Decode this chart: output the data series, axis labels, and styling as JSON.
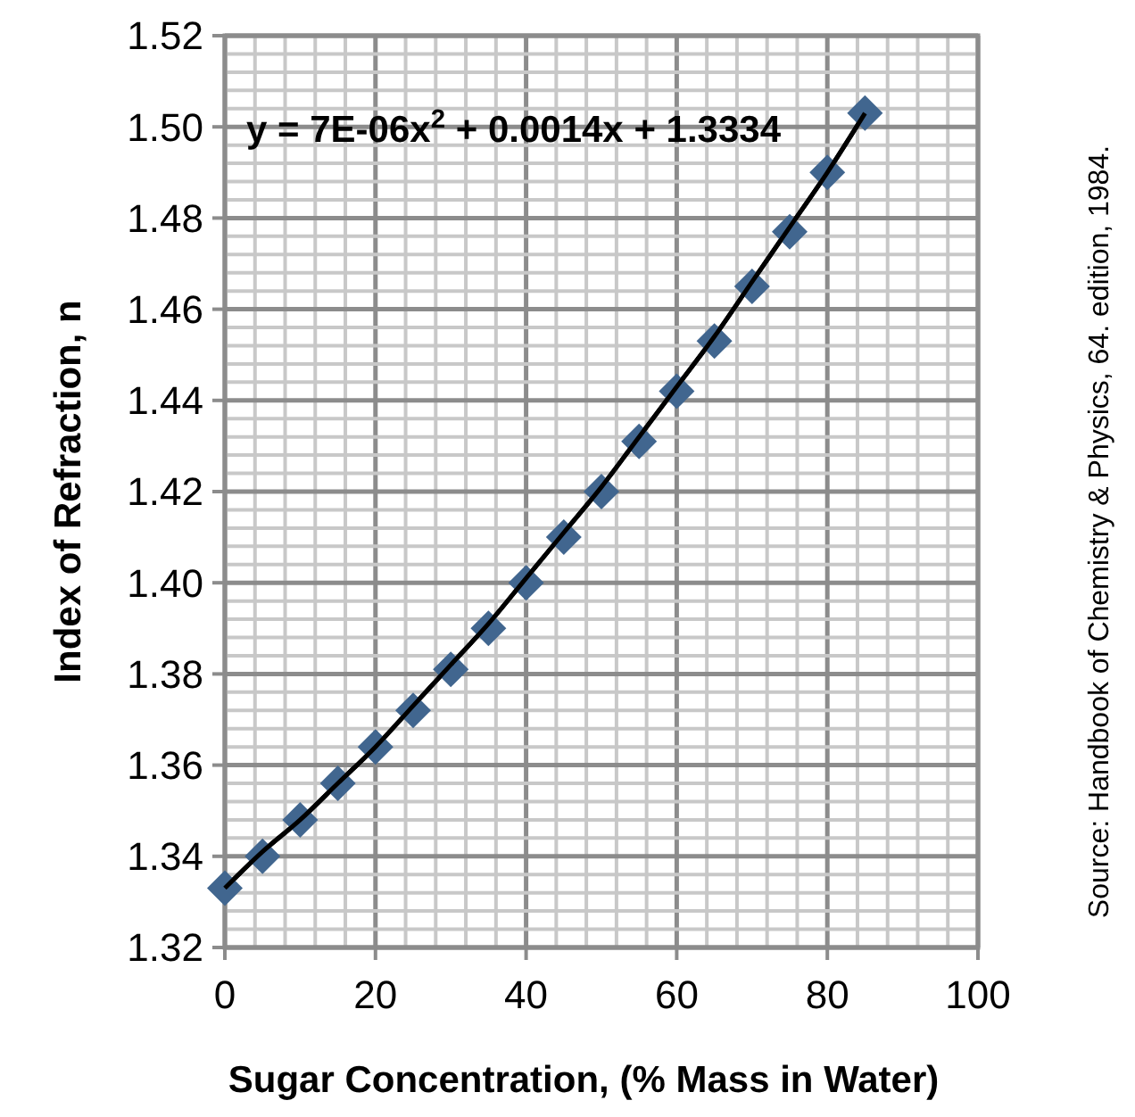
{
  "chart_data": {
    "type": "scatter",
    "xlabel": "Sugar Concentration, (% Mass in Water)",
    "ylabel": "Index of Refraction, n",
    "x": [
      0,
      5,
      10,
      15,
      20,
      25,
      30,
      35,
      40,
      45,
      50,
      55,
      60,
      65,
      70,
      75,
      80,
      85
    ],
    "series": [
      {
        "color": "#41668f",
        "values": [
          1.333,
          1.34,
          1.348,
          1.356,
          1.364,
          1.372,
          1.381,
          1.39,
          1.4,
          1.41,
          1.42,
          1.431,
          1.442,
          1.453,
          1.465,
          1.477,
          1.49,
          1.503
        ]
      },
      {
        "type": "line",
        "color": "#000000",
        "marker": "none",
        "values": [
          1.333,
          1.341,
          1.348,
          1.356,
          1.364,
          1.373,
          1.382,
          1.391,
          1.401,
          1.411,
          1.421,
          1.432,
          1.443,
          1.454,
          1.466,
          1.478,
          1.49,
          1.503
        ]
      }
    ],
    "marker": "diamond",
    "grid": true,
    "xlim": [
      0,
      100
    ],
    "ylim": [
      1.32,
      1.52
    ],
    "xticks": [
      0,
      {
        "value": 4,
        "label": null
      },
      {
        "value": 8,
        "label": null
      },
      {
        "value": 12,
        "label": null
      },
      {
        "value": 16,
        "label": null
      },
      20,
      {
        "value": 24,
        "label": null
      },
      {
        "value": 28,
        "label": null
      },
      {
        "value": 32,
        "label": null
      },
      {
        "value": 36,
        "label": null
      },
      40,
      {
        "value": 44,
        "label": null
      },
      {
        "value": 48,
        "label": null
      },
      {
        "value": 52,
        "label": null
      },
      {
        "value": 56,
        "label": null
      },
      60,
      {
        "value": 64,
        "label": null
      },
      {
        "value": 68,
        "label": null
      },
      {
        "value": 72,
        "label": null
      },
      {
        "value": 76,
        "label": null
      },
      80,
      {
        "value": 84,
        "label": null
      },
      {
        "value": 88,
        "label": null
      },
      {
        "value": 92,
        "label": null
      },
      {
        "value": 96,
        "label": null
      },
      100
    ],
    "yticks": [
      {
        "value": 1.32,
        "label": "1.32"
      },
      {
        "value": 1.324,
        "label": null
      },
      {
        "value": 1.328,
        "label": null
      },
      {
        "value": 1.332,
        "label": null
      },
      {
        "value": 1.336,
        "label": null
      },
      {
        "value": 1.34,
        "label": "1.34"
      },
      {
        "value": 1.344,
        "label": null
      },
      {
        "value": 1.348,
        "label": null
      },
      {
        "value": 1.352,
        "label": null
      },
      {
        "value": 1.356,
        "label": null
      },
      {
        "value": 1.36,
        "label": "1.36"
      },
      {
        "value": 1.364,
        "label": null
      },
      {
        "value": 1.368,
        "label": null
      },
      {
        "value": 1.372,
        "label": null
      },
      {
        "value": 1.376,
        "label": null
      },
      {
        "value": 1.38,
        "label": "1.38"
      },
      {
        "value": 1.384,
        "label": null
      },
      {
        "value": 1.388,
        "label": null
      },
      {
        "value": 1.392,
        "label": null
      },
      {
        "value": 1.396,
        "label": null
      },
      {
        "value": 1.4,
        "label": "1.40"
      },
      {
        "value": 1.404,
        "label": null
      },
      {
        "value": 1.408,
        "label": null
      },
      {
        "value": 1.412,
        "label": null
      },
      {
        "value": 1.416,
        "label": null
      },
      {
        "value": 1.42,
        "label": "1.42"
      },
      {
        "value": 1.424,
        "label": null
      },
      {
        "value": 1.428,
        "label": null
      },
      {
        "value": 1.432,
        "label": null
      },
      {
        "value": 1.436,
        "label": null
      },
      {
        "value": 1.44,
        "label": "1.44"
      },
      {
        "value": 1.444,
        "label": null
      },
      {
        "value": 1.448,
        "label": null
      },
      {
        "value": 1.452,
        "label": null
      },
      {
        "value": 1.456,
        "label": null
      },
      {
        "value": 1.46,
        "label": "1.46"
      },
      {
        "value": 1.464,
        "label": null
      },
      {
        "value": 1.468,
        "label": null
      },
      {
        "value": 1.472,
        "label": null
      },
      {
        "value": 1.476,
        "label": null
      },
      {
        "value": 1.48,
        "label": "1.48"
      },
      {
        "value": 1.484,
        "label": null
      },
      {
        "value": 1.488,
        "label": null
      },
      {
        "value": 1.492,
        "label": null
      },
      {
        "value": 1.496,
        "label": null
      },
      {
        "value": 1.5,
        "label": "1.50"
      },
      {
        "value": 1.504,
        "label": null
      },
      {
        "value": 1.508,
        "label": null
      },
      {
        "value": 1.512,
        "label": null
      },
      {
        "value": 1.516,
        "label": null
      },
      {
        "value": 1.52,
        "label": "1.52"
      }
    ],
    "annotations": [
      "y = 7E-06x$^{2}$ + 0.0014x + 1.3334",
      "Source: Handbook of Chemistry & Physics, 64. edition, 1984."
    ]
  }
}
